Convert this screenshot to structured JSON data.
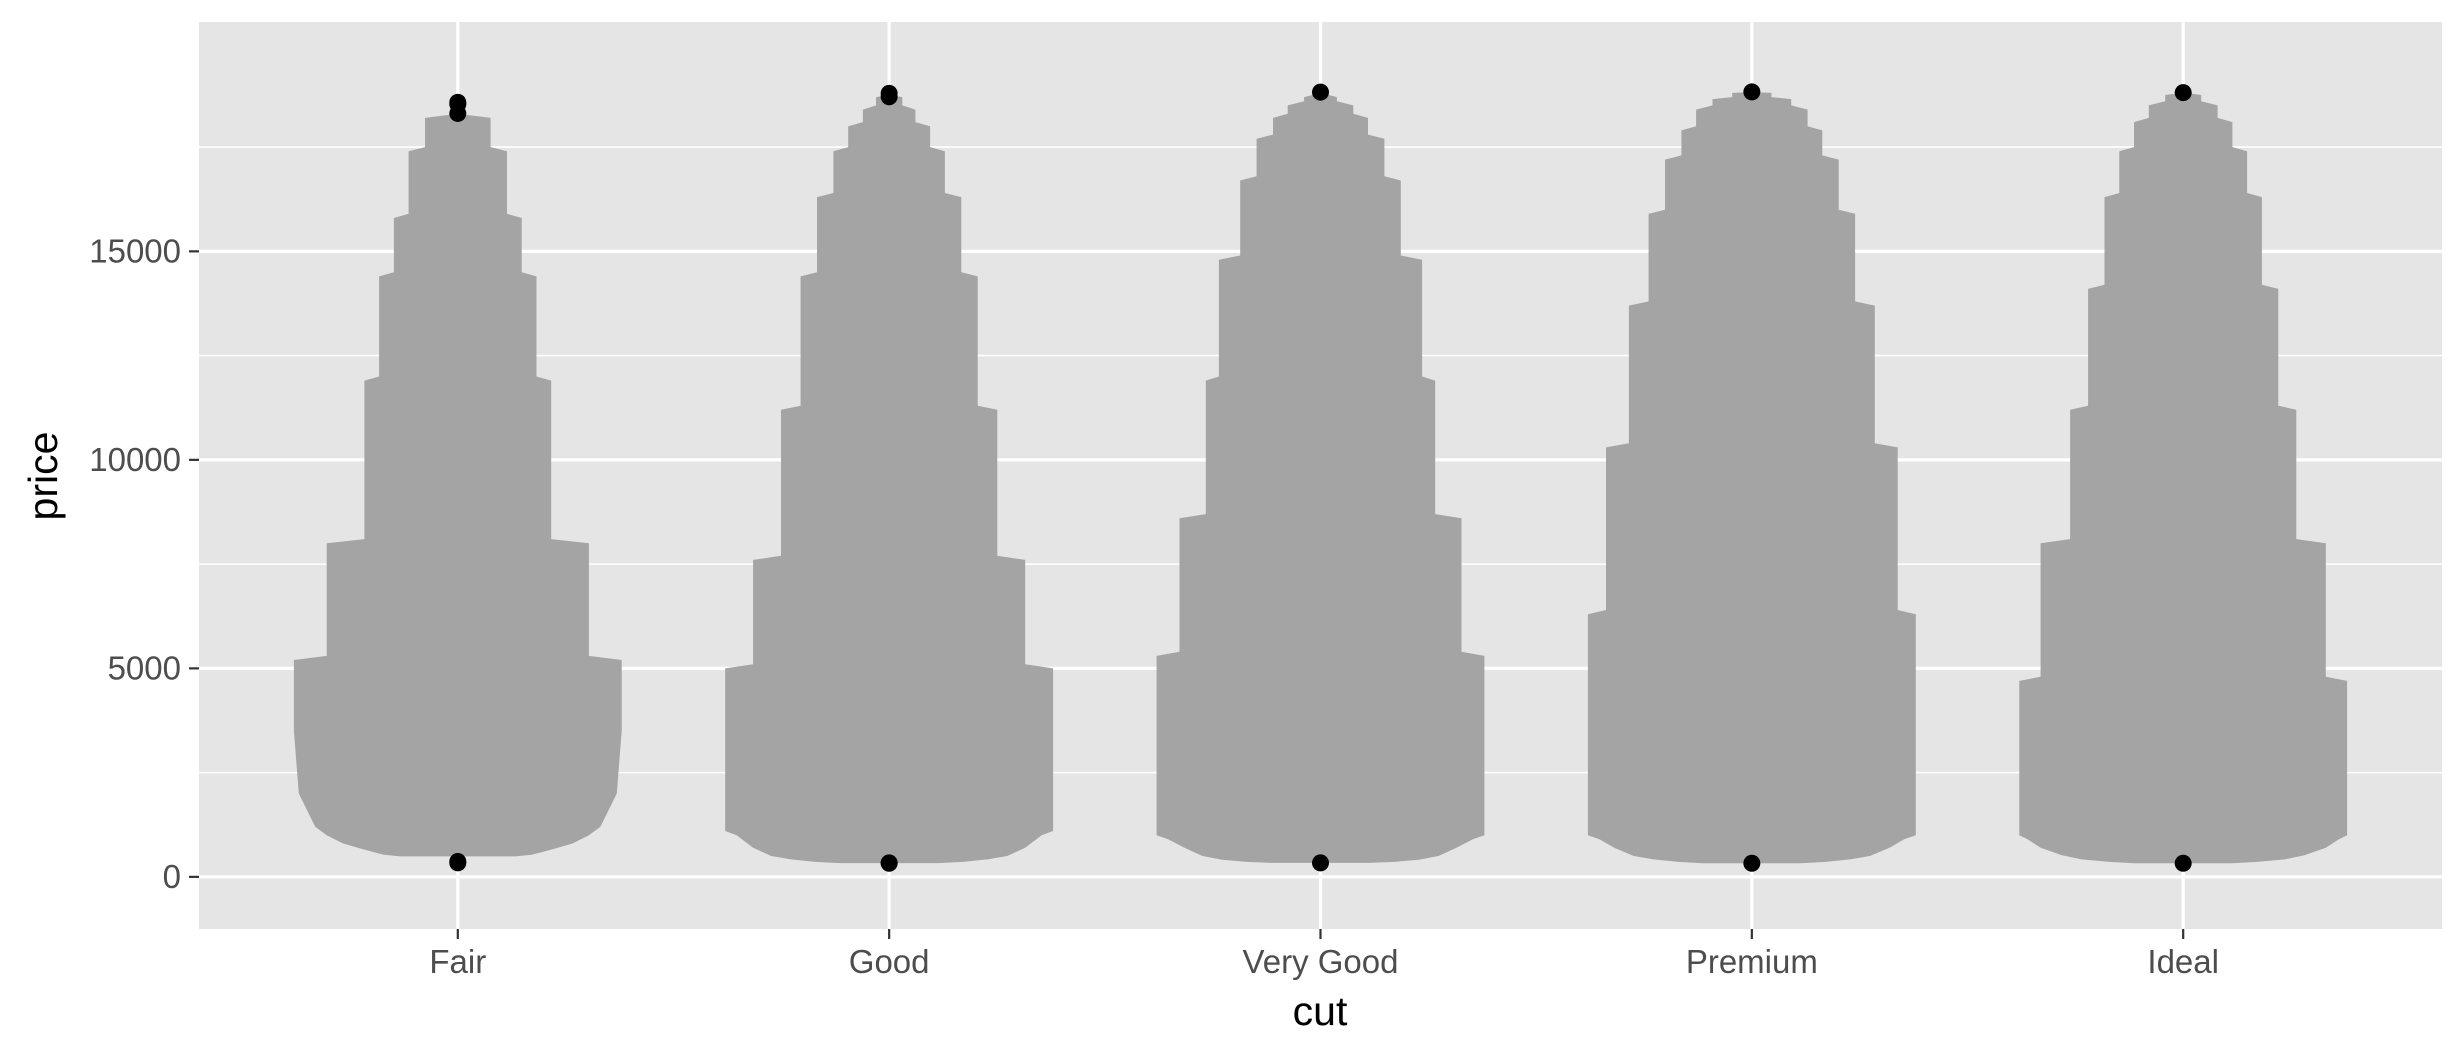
{
  "chart_data": {
    "type": "violin",
    "xlabel": "cut",
    "ylabel": "price",
    "categories": [
      "Fair",
      "Good",
      "Very Good",
      "Premium",
      "Ideal"
    ],
    "yticks": [
      0,
      5000,
      10000,
      15000
    ],
    "ylim": [
      -1250,
      20500
    ],
    "grid": true,
    "panel_color": "#e5e5e5",
    "grid_color": "#ffffff",
    "fill_color": "#a4a4a4",
    "point_color": "#000000",
    "violins": [
      {
        "category": "Fair",
        "width_units": 0.76,
        "profile": [
          [
            490,
            0.35
          ],
          [
            530,
            0.45
          ],
          [
            600,
            0.52
          ],
          [
            700,
            0.61
          ],
          [
            800,
            0.7
          ],
          [
            1000,
            0.8
          ],
          [
            1200,
            0.87
          ],
          [
            2000,
            0.97
          ],
          [
            3500,
            1.0
          ],
          [
            5200,
            1.0
          ],
          [
            5300,
            0.8
          ],
          [
            8000,
            0.8
          ],
          [
            8100,
            0.57
          ],
          [
            11900,
            0.57
          ],
          [
            12000,
            0.48
          ],
          [
            14400,
            0.48
          ],
          [
            14500,
            0.39
          ],
          [
            15800,
            0.39
          ],
          [
            15900,
            0.3
          ],
          [
            17400,
            0.3
          ],
          [
            17500,
            0.2
          ],
          [
            18200,
            0.2
          ],
          [
            18300,
            0.0
          ]
        ],
        "points": [
          18574,
          18531,
          18307,
          337,
          369
        ]
      },
      {
        "category": "Good",
        "width_units": 0.76,
        "profile": [
          [
            330,
            0.3
          ],
          [
            360,
            0.45
          ],
          [
            420,
            0.6
          ],
          [
            500,
            0.72
          ],
          [
            700,
            0.83
          ],
          [
            1000,
            0.93
          ],
          [
            1100,
            1.0
          ],
          [
            5000,
            1.0
          ],
          [
            5100,
            0.83
          ],
          [
            7600,
            0.83
          ],
          [
            7700,
            0.66
          ],
          [
            11200,
            0.66
          ],
          [
            11300,
            0.54
          ],
          [
            14400,
            0.54
          ],
          [
            14500,
            0.44
          ],
          [
            16300,
            0.44
          ],
          [
            16400,
            0.34
          ],
          [
            17400,
            0.34
          ],
          [
            17500,
            0.25
          ],
          [
            18000,
            0.25
          ],
          [
            18100,
            0.16
          ],
          [
            18400,
            0.16
          ],
          [
            18500,
            0.08
          ],
          [
            18700,
            0.08
          ],
          [
            18750,
            0.0
          ]
        ],
        "points": [
          18788,
          18707,
          327,
          335
        ]
      },
      {
        "category": "Very Good",
        "width_units": 0.76,
        "profile": [
          [
            336,
            0.3
          ],
          [
            360,
            0.45
          ],
          [
            410,
            0.6
          ],
          [
            500,
            0.72
          ],
          [
            700,
            0.83
          ],
          [
            900,
            0.93
          ],
          [
            1000,
            1.0
          ],
          [
            5300,
            1.0
          ],
          [
            5400,
            0.86
          ],
          [
            8600,
            0.86
          ],
          [
            8700,
            0.7
          ],
          [
            11900,
            0.7
          ],
          [
            12000,
            0.62
          ],
          [
            14800,
            0.62
          ],
          [
            14900,
            0.49
          ],
          [
            16700,
            0.49
          ],
          [
            16800,
            0.39
          ],
          [
            17700,
            0.39
          ],
          [
            17800,
            0.29
          ],
          [
            18200,
            0.29
          ],
          [
            18300,
            0.2
          ],
          [
            18500,
            0.2
          ],
          [
            18600,
            0.1
          ],
          [
            18700,
            0.1
          ],
          [
            18800,
            0.0
          ]
        ],
        "points": [
          18818,
          336
        ]
      },
      {
        "category": "Premium",
        "width_units": 0.76,
        "profile": [
          [
            326,
            0.3
          ],
          [
            360,
            0.45
          ],
          [
            420,
            0.6
          ],
          [
            500,
            0.72
          ],
          [
            700,
            0.84
          ],
          [
            900,
            0.93
          ],
          [
            1000,
            1.0
          ],
          [
            6300,
            1.0
          ],
          [
            6400,
            0.89
          ],
          [
            10300,
            0.89
          ],
          [
            10400,
            0.75
          ],
          [
            13700,
            0.75
          ],
          [
            13800,
            0.63
          ],
          [
            15900,
            0.63
          ],
          [
            16000,
            0.53
          ],
          [
            17200,
            0.53
          ],
          [
            17300,
            0.43
          ],
          [
            17900,
            0.43
          ],
          [
            18000,
            0.34
          ],
          [
            18400,
            0.34
          ],
          [
            18500,
            0.24
          ],
          [
            18650,
            0.24
          ],
          [
            18700,
            0.12
          ],
          [
            18800,
            0.12
          ],
          [
            18820,
            0.0
          ]
        ],
        "points": [
          18823,
          326
        ]
      },
      {
        "category": "Ideal",
        "width_units": 0.76,
        "profile": [
          [
            326,
            0.3
          ],
          [
            360,
            0.45
          ],
          [
            420,
            0.62
          ],
          [
            520,
            0.74
          ],
          [
            700,
            0.87
          ],
          [
            900,
            0.95
          ],
          [
            1000,
            1.0
          ],
          [
            4700,
            1.0
          ],
          [
            4800,
            0.87
          ],
          [
            8000,
            0.87
          ],
          [
            8100,
            0.69
          ],
          [
            11200,
            0.69
          ],
          [
            11300,
            0.58
          ],
          [
            14100,
            0.58
          ],
          [
            14200,
            0.48
          ],
          [
            16300,
            0.48
          ],
          [
            16400,
            0.39
          ],
          [
            17400,
            0.39
          ],
          [
            17500,
            0.3
          ],
          [
            18100,
            0.3
          ],
          [
            18200,
            0.21
          ],
          [
            18500,
            0.21
          ],
          [
            18600,
            0.11
          ],
          [
            18750,
            0.11
          ],
          [
            18806,
            0.0
          ]
        ],
        "points": [
          18806,
          326
        ]
      }
    ]
  }
}
